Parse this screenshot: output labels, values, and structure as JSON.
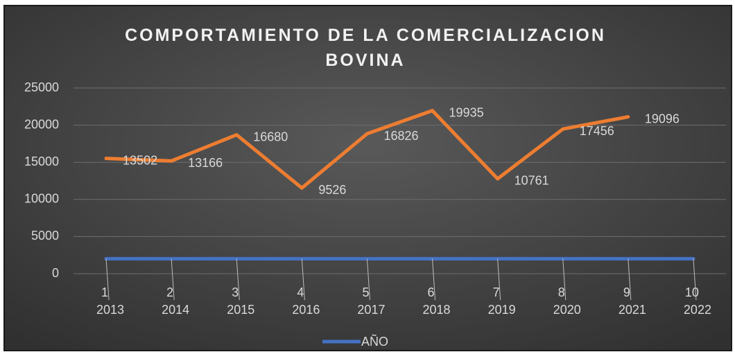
{
  "chart_data": {
    "type": "stacked_line",
    "title": "COMPORTAMIENTO DE LA COMERCIALIZACION BOVINA",
    "categories": [
      "1",
      "2",
      "3",
      "4",
      "5",
      "6",
      "7",
      "8",
      "9",
      "10"
    ],
    "series": [
      {
        "name": "AÑO",
        "color": "#4472c4",
        "values": [
          2013,
          2014,
          2015,
          2016,
          2017,
          2018,
          2019,
          2020,
          2021,
          2022
        ]
      },
      {
        "color": "#ed7d31",
        "values": [
          13502,
          13166,
          16680,
          9526,
          16826,
          19935,
          10761,
          17456,
          19096,
          null
        ]
      }
    ],
    "ylim": [
      0,
      25000
    ],
    "yticks": [
      0,
      5000,
      10000,
      15000,
      20000,
      25000
    ],
    "grid": true,
    "legend": "bottom"
  }
}
